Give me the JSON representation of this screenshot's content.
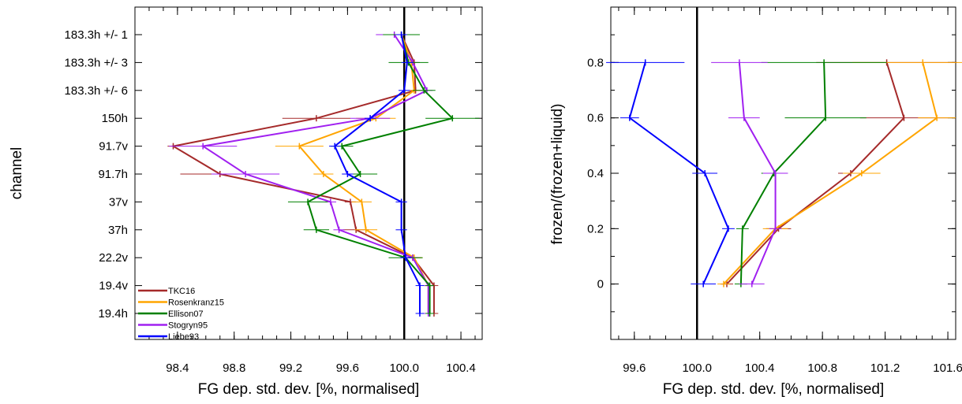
{
  "chart_data": [
    {
      "type": "line",
      "xlabel": "FG dep. std. dev. [%, normalised]",
      "ylabel": "channel",
      "xlim": [
        98.1,
        100.55
      ],
      "xticks": [
        "98.4",
        "98.8",
        "99.2",
        "99.6",
        "100.0",
        "100.4"
      ],
      "categories": [
        "183.3h +/- 1",
        "183.3h +/- 3",
        "183.3h +/- 6",
        "150h",
        "91.7v",
        "91.7h",
        "37v",
        "37h",
        "22.2v",
        "19.4v",
        "19.4h"
      ],
      "reference_line": 100.0,
      "legend": "bottom-left",
      "series": [
        {
          "name": "TKC16",
          "color": "#a52a2a",
          "values": [
            99.98,
            100.07,
            100.08,
            99.38,
            98.37,
            98.7,
            99.62,
            99.66,
            100.06,
            100.21,
            100.21
          ],
          "err": [
            0.04,
            0.04,
            0.04,
            0.24,
            0.04,
            0.28,
            0.04,
            0.09,
            0.06,
            0.03,
            0.03
          ]
        },
        {
          "name": "Rosenkranz15",
          "color": "#ffa500",
          "values": [
            99.98,
            100.05,
            100.07,
            99.8,
            99.26,
            99.43,
            99.7,
            99.73,
            100.07,
            100.17,
            100.17
          ],
          "err": [
            0.04,
            0.04,
            0.04,
            0.14,
            0.17,
            0.07,
            0.07,
            0.08,
            0.06,
            0.03,
            0.03
          ]
        },
        {
          "name": "Ellison07",
          "color": "#008000",
          "values": [
            99.98,
            100.03,
            100.14,
            100.34,
            99.56,
            99.69,
            99.32,
            99.38,
            100.01,
            100.18,
            100.18
          ],
          "err": [
            0.13,
            0.14,
            0.08,
            0.19,
            0.08,
            0.12,
            0.14,
            0.09,
            0.12,
            0.03,
            0.03
          ]
        },
        {
          "name": "Stogryn95",
          "color": "#a020f0",
          "values": [
            99.93,
            100.06,
            100.16,
            99.76,
            98.58,
            98.88,
            99.48,
            99.54,
            100.06,
            100.17,
            100.17
          ],
          "err": [
            0.13,
            0.04,
            0.04,
            0.14,
            0.24,
            0.24,
            0.04,
            0.04,
            0.04,
            0.03,
            0.03
          ]
        },
        {
          "name": "Liebe93",
          "color": "#0000ff",
          "values": [
            99.98,
            100.02,
            100.0,
            99.76,
            99.51,
            99.6,
            99.98,
            99.98,
            100.01,
            100.11,
            100.11
          ],
          "err": [
            0.04,
            0.04,
            0.04,
            0.04,
            0.04,
            0.04,
            0.04,
            0.04,
            0.04,
            0.03,
            0.03
          ]
        }
      ]
    },
    {
      "type": "line",
      "xlabel": "FG dep. std. dev. [%, normalised]",
      "ylabel": "frozen/(frozen+liquid)",
      "xlim": [
        99.45,
        101.65
      ],
      "ylim": [
        -0.2,
        1.0
      ],
      "xticks": [
        "99.6",
        "100.0",
        "100.4",
        "100.8",
        "101.2",
        "101.6"
      ],
      "yticks": [
        "0",
        "0.2",
        "0.4",
        "0.6",
        "0.8"
      ],
      "y": [
        0,
        0.2,
        0.4,
        0.6,
        0.8
      ],
      "reference_line": 100.0,
      "series": [
        {
          "color": "#a52a2a",
          "values": [
            100.19,
            100.52,
            100.98,
            101.32,
            101.21
          ],
          "err": [
            0.04,
            0.08,
            0.08,
            0.28,
            0.45
          ]
        },
        {
          "color": "#ffa500",
          "values": [
            100.17,
            100.5,
            101.05,
            101.53,
            101.44
          ],
          "err": [
            0.04,
            0.08,
            0.12,
            0.12,
            0.45
          ]
        },
        {
          "color": "#008000",
          "values": [
            100.28,
            100.29,
            100.49,
            100.82,
            100.81
          ],
          "err": [
            0.04,
            0.04,
            0.08,
            0.26,
            0.4
          ]
        },
        {
          "color": "#a020f0",
          "values": [
            100.35,
            100.5,
            100.5,
            100.3,
            100.27
          ],
          "err": [
            0.08,
            0.04,
            0.08,
            0.1,
            0.18
          ]
        },
        {
          "color": "#0000ff",
          "values": [
            100.04,
            100.2,
            100.05,
            99.57,
            99.67
          ],
          "err": [
            0.08,
            0.04,
            0.08,
            0.06,
            0.25
          ]
        }
      ]
    }
  ]
}
